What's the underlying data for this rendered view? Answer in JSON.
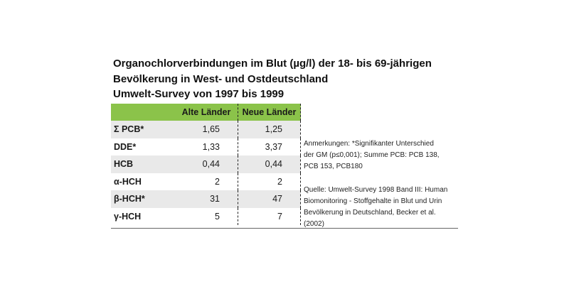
{
  "title": {
    "line1": "Organochlorverbindungen im Blut (µg/l) der 18- bis 69-jährigen",
    "line2": "Bevölkerung in West- und Ostdeutschland",
    "line3": "Umwelt-Survey von 1997 bis 1999"
  },
  "table": {
    "headers": [
      "",
      "Alte Länder",
      "Neue Länder"
    ],
    "rows": [
      {
        "label": "Σ PCB*",
        "alte": "1,65",
        "neue": "1,25"
      },
      {
        "label": "DDE*",
        "alte": "1,33",
        "neue": "3,37"
      },
      {
        "label": "HCB",
        "alte": "0,44",
        "neue": "0,44"
      },
      {
        "label": "α-HCH",
        "alte": "2",
        "neue": "2"
      },
      {
        "label": "β-HCH*",
        "alte": "31",
        "neue": "47"
      },
      {
        "label": "γ-HCH",
        "alte": "5",
        "neue": "7"
      }
    ]
  },
  "notes": {
    "anmerkungen": [
      "Anmerkungen: *Signifikanter Unterschied",
      "der GM (p≤0,001); Summe PCB: PCB 138,",
      "PCB 153, PCB180"
    ],
    "quelle": [
      "Quelle: Umwelt-Survey 1998 Band III: Human",
      "Biomonitoring - Stoffgehalte in Blut und Urin",
      "Bevölkerung in Deutschland, Becker et al.",
      "(2002)"
    ]
  },
  "colors": {
    "header_green": "#8bc34a",
    "row_shade": "#e9e9e9"
  }
}
